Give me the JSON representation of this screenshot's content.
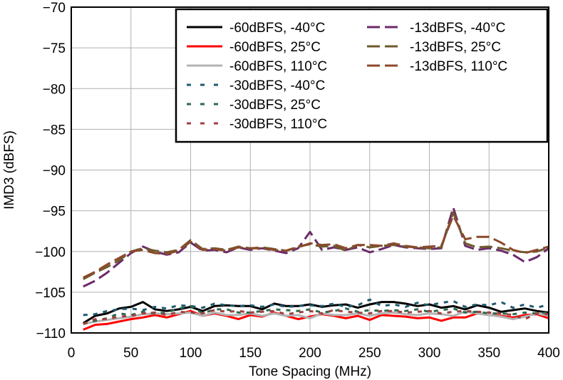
{
  "chart_data": {
    "type": "line",
    "title": "",
    "xlabel": "Tone Spacing (MHz)",
    "ylabel": "IMD3 (dBFS)",
    "xlim": [
      0,
      400
    ],
    "ylim": [
      -110,
      -70
    ],
    "xticks": [
      0,
      50,
      100,
      150,
      200,
      250,
      300,
      350,
      400
    ],
    "yticks": [
      -70,
      -75,
      -80,
      -85,
      -90,
      -95,
      -100,
      -105,
      -110
    ],
    "grid": true,
    "legend_position": "top-right",
    "x": [
      10,
      20,
      30,
      40,
      50,
      60,
      70,
      80,
      90,
      100,
      110,
      120,
      130,
      140,
      150,
      160,
      170,
      180,
      190,
      200,
      210,
      220,
      230,
      240,
      250,
      260,
      270,
      280,
      290,
      300,
      310,
      320,
      330,
      340,
      350,
      360,
      370,
      380,
      390,
      400
    ],
    "series": [
      {
        "name": "-60dBFS, -40°C",
        "color": "#000000",
        "dash": "solid",
        "values": [
          -108.8,
          -107.9,
          -107.6,
          -107.0,
          -106.8,
          -106.2,
          -107.1,
          -107.3,
          -107.1,
          -106.8,
          -107.3,
          -106.7,
          -106.6,
          -106.7,
          -106.7,
          -107.1,
          -106.4,
          -106.7,
          -106.7,
          -106.5,
          -106.8,
          -106.6,
          -106.5,
          -106.9,
          -106.5,
          -106.2,
          -106.2,
          -106.4,
          -106.7,
          -106.5,
          -106.9,
          -106.7,
          -107.1,
          -106.6,
          -106.9,
          -107.4,
          -107.2,
          -107.0,
          -107.3,
          -107.5
        ]
      },
      {
        "name": "-60dBFS, 25°C",
        "color": "#ff0000",
        "dash": "solid",
        "values": [
          -109.6,
          -109.0,
          -108.9,
          -108.6,
          -108.3,
          -108.1,
          -107.8,
          -108.1,
          -107.7,
          -107.3,
          -107.9,
          -107.6,
          -107.9,
          -108.3,
          -107.8,
          -108.0,
          -107.5,
          -107.9,
          -108.3,
          -108.0,
          -107.7,
          -107.9,
          -108.2,
          -107.9,
          -108.4,
          -107.8,
          -107.9,
          -108.0,
          -108.2,
          -108.1,
          -108.5,
          -108.1,
          -108.1,
          -107.6,
          -107.8,
          -107.9,
          -108.1,
          -107.8,
          -107.7,
          -108.2
        ]
      },
      {
        "name": "-60dBFS, 110°C",
        "color": "#b3b3b3",
        "dash": "solid",
        "values": [
          -108.9,
          -108.6,
          -108.4,
          -108.2,
          -108.0,
          -107.7,
          -107.6,
          -107.7,
          -107.6,
          -107.5,
          -107.9,
          -107.5,
          -107.8,
          -107.8,
          -107.6,
          -107.9,
          -107.6,
          -107.9,
          -107.8,
          -108.2,
          -107.6,
          -107.8,
          -107.8,
          -107.6,
          -107.9,
          -107.6,
          -107.5,
          -107.7,
          -107.8,
          -107.6,
          -107.7,
          -107.9,
          -107.4,
          -107.6,
          -107.8,
          -108.0,
          -108.3,
          -108.0,
          -107.6,
          -107.9
        ]
      },
      {
        "name": "-30dBFS, -40°C",
        "color": "#1f5a6e",
        "dash": "dash",
        "values": [
          -107.8,
          -107.7,
          -107.3,
          -107.1,
          -107.0,
          -107.2,
          -106.8,
          -107.0,
          -106.6,
          -106.7,
          -106.9,
          -106.4,
          -106.6,
          -106.7,
          -106.6,
          -106.8,
          -106.5,
          -106.8,
          -106.7,
          -106.6,
          -106.7,
          -106.4,
          -106.8,
          -106.6,
          -105.9,
          -106.7,
          -106.5,
          -106.8,
          -106.3,
          -106.6,
          -106.3,
          -106.1,
          -106.8,
          -106.5,
          -106.6,
          -106.2,
          -106.9,
          -106.5,
          -106.9,
          -106.5
        ]
      },
      {
        "name": "-30dBFS, 25°C",
        "color": "#2a6a4e",
        "dash": "dash",
        "values": [
          -108.9,
          -108.5,
          -108.2,
          -107.6,
          -107.8,
          -107.4,
          -107.6,
          -107.5,
          -107.0,
          -106.7,
          -107.6,
          -107.1,
          -107.1,
          -107.5,
          -107.5,
          -107.3,
          -107.1,
          -107.2,
          -107.3,
          -107.1,
          -107.5,
          -107.3,
          -107.0,
          -107.4,
          -107.2,
          -107.3,
          -107.2,
          -107.3,
          -107.1,
          -107.4,
          -107.2,
          -107.0,
          -107.5,
          -107.4,
          -107.6,
          -107.6,
          -107.7,
          -107.5,
          -107.6,
          -107.5
        ]
      },
      {
        "name": "-30dBFS, 110°C",
        "color": "#a04040",
        "dash": "dash",
        "values": [
          -108.9,
          -108.3,
          -108.3,
          -108.0,
          -107.9,
          -107.6,
          -107.5,
          -107.8,
          -107.4,
          -107.5,
          -107.6,
          -107.2,
          -107.4,
          -107.3,
          -107.5,
          -107.4,
          -107.3,
          -107.7,
          -107.5,
          -107.3,
          -107.6,
          -107.2,
          -107.4,
          -107.5,
          -107.6,
          -107.3,
          -107.3,
          -107.5,
          -107.4,
          -107.3,
          -107.6,
          -107.4,
          -107.3,
          -107.4,
          -107.5,
          -107.6,
          -107.8,
          -108.3,
          -107.6,
          -107.7
        ]
      },
      {
        "name": "-13dBFS, -40°C",
        "color": "#6b2b6b",
        "dash": "longdash",
        "values": [
          -104.3,
          -103.6,
          -102.6,
          -101.4,
          -100.2,
          -99.4,
          -100.0,
          -100.4,
          -100.1,
          -98.9,
          -99.9,
          -99.8,
          -100.1,
          -99.5,
          -99.8,
          -99.6,
          -99.9,
          -100.2,
          -99.6,
          -97.6,
          -99.8,
          -99.5,
          -99.8,
          -99.5,
          -100.1,
          -99.7,
          -99.2,
          -99.5,
          -99.6,
          -99.7,
          -99.6,
          -94.6,
          -99.3,
          -99.8,
          -99.6,
          -99.9,
          -100.4,
          -101.3,
          -100.7,
          -99.6
        ]
      },
      {
        "name": "-13dBFS, 25°C",
        "color": "#6e5a2e",
        "dash": "longdash",
        "values": [
          -103.4,
          -102.6,
          -101.9,
          -101.1,
          -100.0,
          -99.6,
          -99.9,
          -100.1,
          -99.8,
          -98.6,
          -99.7,
          -99.6,
          -99.8,
          -99.4,
          -99.6,
          -99.5,
          -99.7,
          -99.9,
          -99.4,
          -99.1,
          -99.4,
          -99.3,
          -99.9,
          -99.2,
          -99.5,
          -99.3,
          -99.2,
          -99.4,
          -99.5,
          -99.6,
          -99.5,
          -95.2,
          -99.0,
          -99.5,
          -99.4,
          -99.6,
          -99.9,
          -100.1,
          -100.0,
          -99.5
        ]
      },
      {
        "name": "-13dBFS, 110°C",
        "color": "#8b4a2b",
        "dash": "longdash",
        "values": [
          -103.2,
          -102.5,
          -101.6,
          -100.8,
          -100.0,
          -99.8,
          -100.2,
          -100.3,
          -99.9,
          -98.8,
          -99.8,
          -99.7,
          -99.9,
          -99.5,
          -99.6,
          -99.6,
          -99.8,
          -99.9,
          -99.5,
          -99.0,
          -99.2,
          -99.1,
          -99.6,
          -99.2,
          -99.2,
          -99.3,
          -99.0,
          -99.3,
          -99.5,
          -99.4,
          -99.3,
          -95.6,
          -98.5,
          -98.2,
          -98.2,
          -98.9,
          -99.8,
          -100.2,
          -99.8,
          -99.4
        ]
      }
    ]
  }
}
